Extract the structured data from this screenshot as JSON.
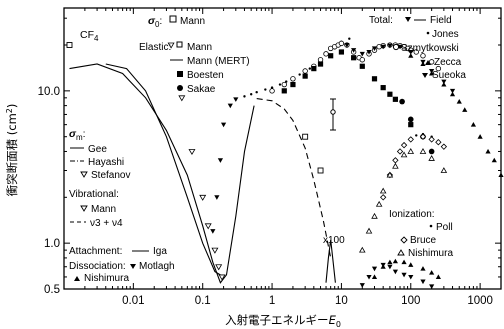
{
  "chart_data": {
    "type": "scatter",
    "gas_label": "CF",
    "gas_sub": "4",
    "xlabel": "入射電子エネルギー",
    "xlabel_var": "E",
    "xlabel_sub": "0",
    "ylabel": "衝突断面積 (cm",
    "ylabel_sup": "2",
    "ylabel_end": ")",
    "xscale": "log",
    "yscale": "log",
    "xlim": [
      0.001,
      2000
    ],
    "ylim": [
      0.5,
      35
    ],
    "x_ticks": [
      {
        "v": 0.01,
        "label": "0.01"
      },
      {
        "v": 0.1,
        "label": "0.1"
      },
      {
        "v": 1,
        "label": "1"
      },
      {
        "v": 10,
        "label": "10"
      },
      {
        "v": 100,
        "label": "100"
      },
      {
        "v": 1000,
        "label": "1000"
      }
    ],
    "y_ticks": [
      {
        "v": 0.5,
        "label": "0.5"
      },
      {
        "v": 1.0,
        "label": "1.0"
      },
      {
        "v": 10.0,
        "label": "10.0"
      }
    ],
    "annotation_x100": "x100",
    "legend_groups": {
      "sigma0": {
        "symbol": "σ",
        "sub": "0",
        "sep": ":",
        "entries": [
          "Mann"
        ]
      },
      "elastic": {
        "head": "Elastic:",
        "entries": [
          "Mann",
          "Mann (MERT)",
          "Boesten",
          "Sakae"
        ]
      },
      "total": {
        "head": "Total:",
        "entries": [
          "Field",
          "Jones",
          "Szmytkowski",
          "Zecca",
          "Sueoka"
        ]
      },
      "sigma_m": {
        "symbol": "σ",
        "sub": "m",
        "sep": ":",
        "entries": [
          "Gee",
          "Hayashi",
          "Stefanov"
        ]
      },
      "vibrational": {
        "head": "Vibrational:",
        "entries": [
          "Mann",
          "ν3 + ν4"
        ]
      },
      "attachment": {
        "head": "Attachment:",
        "entries": [
          "Iga"
        ]
      },
      "dissociation": {
        "head": "Dissociation:",
        "entries": [
          "Motlagh",
          "Nishimura"
        ]
      },
      "ionization": {
        "head": "Ionization:",
        "entries": [
          "Poll",
          "Bruce",
          "Nishimura"
        ]
      }
    },
    "series": [
      {
        "name": "Hayashi",
        "style": "line-solid",
        "x": [
          0.0012,
          0.003,
          0.007,
          0.015,
          0.03,
          0.06,
          0.1,
          0.14,
          0.18,
          0.22,
          0.3,
          0.4,
          0.55
        ],
        "y": [
          14,
          15,
          13,
          9,
          5.5,
          2.8,
          1.3,
          0.75,
          0.55,
          0.62,
          1.5,
          4,
          8
        ]
      },
      {
        "name": "Gee",
        "style": "line-solid",
        "x": [
          0.004,
          0.008,
          0.015,
          0.03,
          0.06,
          0.1,
          0.15,
          0.2
        ],
        "y": [
          15,
          14,
          10,
          5,
          2,
          1,
          0.65,
          0.6
        ]
      },
      {
        "name": "Mann (MERT)",
        "style": "line-dash",
        "x": [
          0.6,
          1,
          1.5,
          2,
          3,
          4,
          5.5,
          7
        ],
        "y": [
          8.9,
          8.6,
          7.6,
          6.4,
          4.2,
          2.6,
          1.4,
          0.8
        ]
      },
      {
        "name": "Iga",
        "style": "line-solid",
        "x": [
          6,
          6.5,
          7,
          7.5,
          8.2
        ],
        "y": [
          0.55,
          0.8,
          1.05,
          0.8,
          0.55
        ]
      },
      {
        "name": "Stefanov",
        "style": "marker-tri-down-open",
        "x": [
          0.035,
          0.05,
          0.07,
          0.1,
          0.12,
          0.15,
          0.17,
          0.19
        ],
        "y": [
          20,
          9,
          4,
          2,
          1.3,
          0.9,
          0.7,
          0.6
        ]
      },
      {
        "name": "Field",
        "style": "marker-tri-down",
        "x": [
          0.14,
          0.16,
          0.18,
          0.2,
          0.25,
          0.3
        ],
        "y": [
          1.2,
          2,
          3.5,
          6,
          8,
          8.8
        ]
      },
      {
        "name": "Mann",
        "style": "marker-square-open",
        "x": [
          0.0012,
          3,
          5
        ],
        "y": [
          20,
          5,
          3
        ]
      },
      {
        "name": "Jones",
        "style": "marker-dot-small",
        "x": [
          0.3,
          0.4,
          0.5,
          0.6,
          0.8,
          1,
          1.3,
          1.6,
          2,
          2.5,
          3,
          3.5,
          4,
          5,
          6,
          8,
          10,
          13
        ],
        "y": [
          8.8,
          9.2,
          9.5,
          9.8,
          10.2,
          10.5,
          11,
          11.5,
          12,
          12.8,
          13.5,
          14,
          14.5,
          16,
          17.5,
          19,
          21,
          22
        ]
      },
      {
        "name": "Szmytkowski",
        "style": "marker-circle-open",
        "x": [
          1,
          1.5,
          2,
          3,
          4,
          5,
          6,
          7,
          8,
          9,
          10,
          12,
          15,
          18,
          20,
          25,
          30,
          35,
          40,
          50,
          60,
          70,
          80,
          90,
          100,
          120,
          150,
          200,
          250
        ],
        "y": [
          10,
          11,
          12,
          13.5,
          14.5,
          16,
          17.5,
          19,
          19.5,
          20,
          20.5,
          20,
          18,
          16.5,
          16,
          17.5,
          18.5,
          19.5,
          19.8,
          20,
          20,
          19.8,
          19.5,
          19,
          18.5,
          18,
          17,
          15.5,
          14
        ]
      },
      {
        "name": "Zecca",
        "style": "marker-tri-up",
        "x": [
          100,
          150,
          200,
          300,
          400,
          500,
          600,
          800,
          1000,
          1300,
          1600,
          2000,
          2400,
          2800
        ],
        "y": [
          17,
          15,
          13,
          11,
          9.5,
          8.5,
          7.5,
          6,
          5,
          4,
          3.5,
          2.8,
          2.3,
          1.9
        ]
      },
      {
        "name": "Sueoka",
        "style": "marker-tri-down",
        "x": [
          12,
          15,
          20,
          25,
          30,
          40,
          50,
          70,
          100,
          150,
          200,
          300,
          400
        ],
        "y": [
          20,
          18.5,
          17.5,
          18,
          19,
          19.5,
          19.8,
          19.5,
          18,
          15.5,
          13.5,
          11.5,
          10
        ]
      },
      {
        "name": "Boesten",
        "style": "marker-square",
        "x": [
          1.5,
          2,
          3,
          4,
          5,
          7,
          10,
          15,
          20,
          30,
          40,
          50,
          60,
          100
        ],
        "y": [
          10,
          11,
          12.5,
          14,
          15,
          17,
          18,
          16.5,
          14.5,
          12,
          10.5,
          9.5,
          8.8,
          6
        ]
      },
      {
        "name": "Sakae",
        "style": "marker-circle",
        "x": [
          75,
          100,
          150,
          200
        ],
        "y": [
          8.5,
          6.5,
          5,
          4
        ]
      },
      {
        "name": "Poll",
        "style": "marker-dot-small",
        "x": [
          80,
          100,
          120,
          150,
          200,
          250,
          300
        ],
        "y": [
          4.5,
          4.9,
          5.1,
          5.2,
          5,
          4.7,
          4.3
        ]
      },
      {
        "name": "Bruce",
        "style": "marker-diamond-open",
        "x": [
          40,
          50,
          60,
          70,
          80,
          100,
          150,
          200,
          250,
          300
        ],
        "y": [
          2,
          2.8,
          3.5,
          4,
          4.4,
          4.8,
          5,
          4.8,
          4.6,
          4.3
        ]
      },
      {
        "name": "Nishimura (ionization)",
        "style": "marker-tri-up-open",
        "x": [
          20,
          25,
          30,
          35,
          40,
          50,
          60,
          80,
          100,
          150,
          200,
          300
        ],
        "y": [
          0.9,
          1.2,
          1.5,
          1.8,
          2.2,
          2.8,
          3.2,
          3.8,
          4,
          4,
          3.6,
          3
        ]
      },
      {
        "name": "Motlagh",
        "style": "marker-tri-down",
        "x": [
          20,
          25,
          30,
          40,
          50,
          60,
          80,
          100,
          150,
          200
        ],
        "y": [
          0.53,
          0.6,
          0.68,
          0.72,
          0.7,
          0.65,
          0.62,
          0.6,
          0.56,
          0.52
        ]
      },
      {
        "name": "Nishimura (dissociation)",
        "style": "marker-tri-up",
        "x": [
          30,
          40,
          50,
          60,
          80,
          100,
          150,
          200,
          250
        ],
        "y": [
          0.6,
          0.7,
          0.75,
          0.76,
          0.75,
          0.72,
          0.68,
          0.64,
          0.6
        ]
      }
    ]
  }
}
